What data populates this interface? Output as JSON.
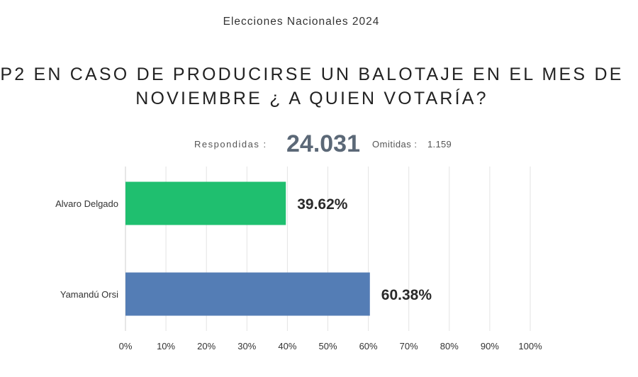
{
  "header": {
    "subtitle": "Elecciones Nacionales 2024",
    "title_line1": "P2 EN CASO DE PRODUCIRSE UN BALOTAJE  EN EL MES DE",
    "title_line2": "NOVIEMBRE ¿ A QUIEN VOTARÍA?"
  },
  "stats": {
    "answered_label": "Respondidas :",
    "answered_value": "24.031",
    "omitted_label": "Omitidas :",
    "omitted_value": "1.159"
  },
  "colors": {
    "bar1": "#1fbf6f",
    "bar2": "#547db5",
    "grid": "#e3e3e3"
  },
  "chart_data": {
    "type": "bar",
    "orientation": "horizontal",
    "categories": [
      "Alvaro Delgado",
      "Yamandú Orsi"
    ],
    "values": [
      39.62,
      60.38
    ],
    "value_labels": [
      "39.62%",
      "60.38%"
    ],
    "xlim": [
      0,
      100
    ],
    "xticks": [
      "0%",
      "10%",
      "20%",
      "30%",
      "40%",
      "50%",
      "60%",
      "70%",
      "80%",
      "90%",
      "100%"
    ],
    "grid": true
  }
}
